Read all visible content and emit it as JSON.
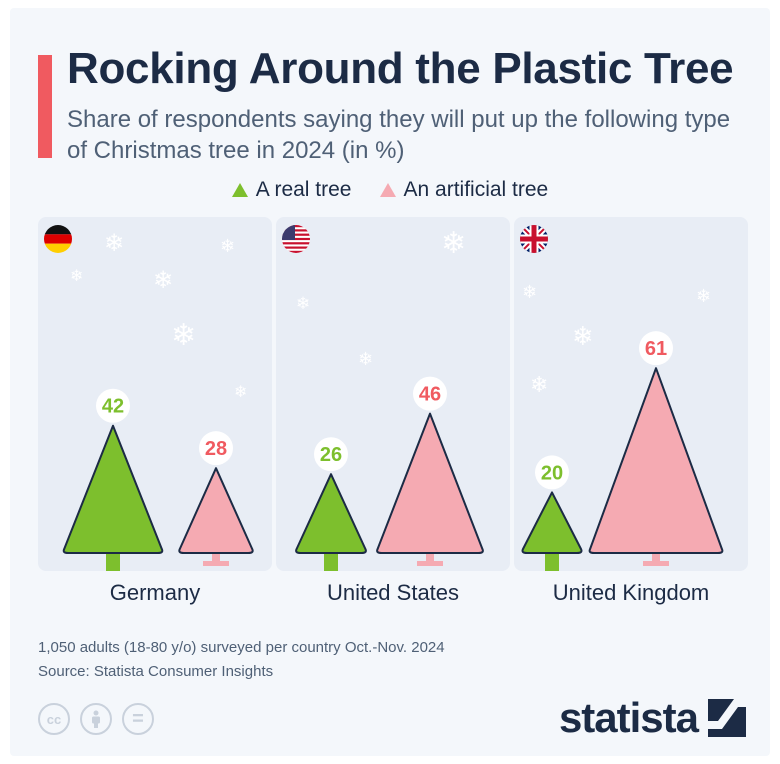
{
  "title": "Rocking Around the Plastic Tree",
  "subtitle": "Share of respondents saying they will put up the following type of Christmas tree in 2024 (in %)",
  "colors": {
    "real": "#7dbf2d",
    "artificial": "#f5aab2",
    "real_label": "#7dbf2d",
    "artificial_label": "#f05a60",
    "accent": "#f05a60",
    "outline": "#1c2b45"
  },
  "chart_data": {
    "type": "bar",
    "title": "Rocking Around the Plastic Tree",
    "subtitle": "Share of respondents saying they will put up the following type of Christmas tree in 2024 (in %)",
    "categories": [
      "Germany",
      "United States",
      "United Kingdom"
    ],
    "series": [
      {
        "name": "A real tree",
        "values": [
          42,
          26,
          20
        ]
      },
      {
        "name": "An artificial tree",
        "values": [
          28,
          46,
          61
        ]
      }
    ],
    "unit": "%",
    "ylim": [
      0,
      70
    ],
    "grid": false,
    "legend": "top-center"
  },
  "flags": [
    "germany-flag-icon",
    "usa-flag-icon",
    "uk-flag-icon"
  ],
  "footnote": "1,050 adults (18-80 y/o) surveyed per country Oct.-Nov. 2024",
  "source": "Source: Statista Consumer Insights",
  "license_icons": [
    "cc-icon",
    "by-icon",
    "nd-icon"
  ],
  "cc_text": "cc",
  "nd_text": "=",
  "brand": "statista"
}
